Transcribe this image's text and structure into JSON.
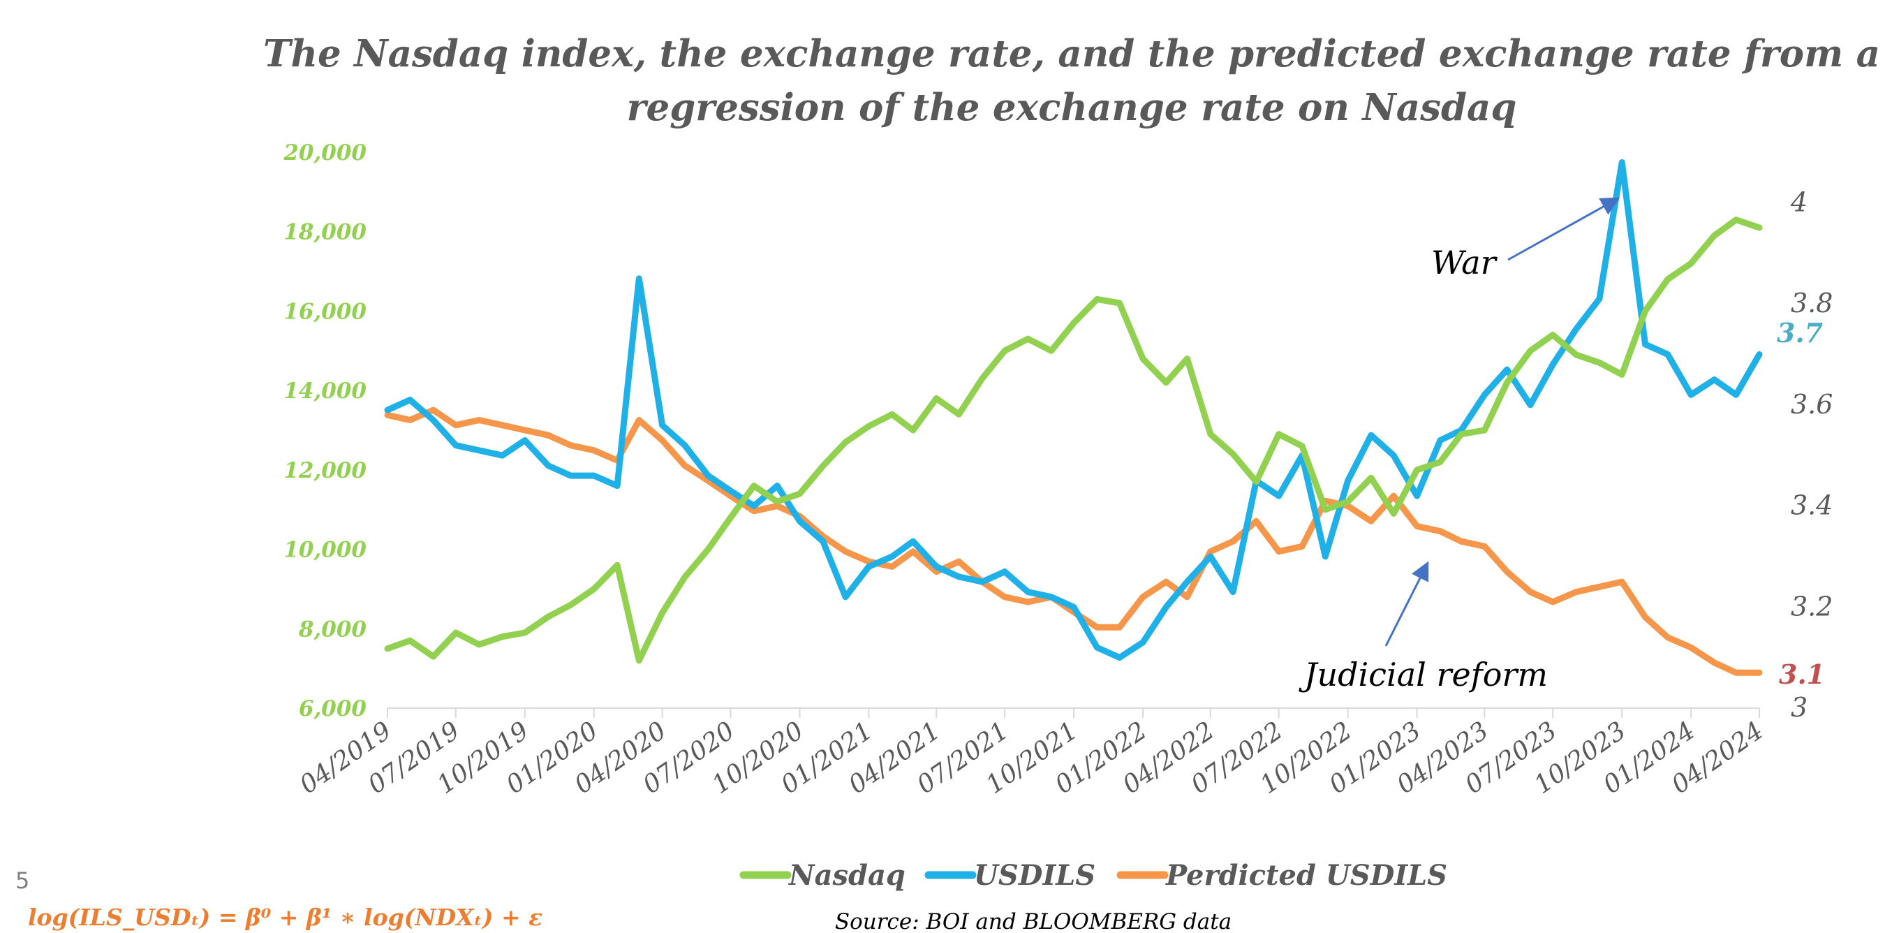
{
  "page_number": "5",
  "formula": "log(ILS_USDₜ) = β⁰ + β¹ ∗ log(NDXₜ) + ε",
  "source": "Source: BOI and BLOOMBERG data",
  "chart_data": {
    "type": "line",
    "title_line1": "The Nasdaq index, the exchange rate, and the predicted exchange rate from a",
    "title_line2": "regression of the exchange rate on Nasdaq",
    "xlabel": "",
    "x_ticks": [
      "04/2019",
      "07/2019",
      "10/2019",
      "01/2020",
      "04/2020",
      "07/2020",
      "10/2020",
      "01/2021",
      "04/2021",
      "07/2021",
      "10/2021",
      "01/2022",
      "04/2022",
      "07/2022",
      "10/2022",
      "01/2023",
      "04/2023",
      "07/2023",
      "10/2023",
      "01/2024",
      "04/2024"
    ],
    "y_left": {
      "ylim": [
        6000,
        20000
      ],
      "ticks": [
        "6,000",
        "8,000",
        "10,000",
        "12,000",
        "14,000",
        "16,000",
        "18,000",
        "20,000"
      ],
      "color": "#92d050"
    },
    "y_right": {
      "ylim": [
        3.0,
        4.1
      ],
      "ticks": [
        "3",
        "3.2",
        "3.4",
        "3.6",
        "3.8",
        "4"
      ],
      "color": "#595959"
    },
    "grid": false,
    "legend_position": "bottom",
    "series": [
      {
        "name": "Nasdaq",
        "axis": "left",
        "color": "#92d050",
        "points": [
          [
            "2019-04",
            7500
          ],
          [
            "2019-05",
            7700
          ],
          [
            "2019-06",
            7300
          ],
          [
            "2019-07",
            7900
          ],
          [
            "2019-08",
            7600
          ],
          [
            "2019-09",
            7800
          ],
          [
            "2019-10",
            7900
          ],
          [
            "2019-11",
            8300
          ],
          [
            "2019-12",
            8600
          ],
          [
            "2020-01",
            9000
          ],
          [
            "2020-02",
            9600
          ],
          [
            "2020-03",
            7200
          ],
          [
            "2020-04",
            8400
          ],
          [
            "2020-05",
            9300
          ],
          [
            "2020-06",
            10000
          ],
          [
            "2020-07",
            10800
          ],
          [
            "2020-08",
            11600
          ],
          [
            "2020-09",
            11200
          ],
          [
            "2020-10",
            11400
          ],
          [
            "2020-11",
            12100
          ],
          [
            "2020-12",
            12700
          ],
          [
            "2021-01",
            13100
          ],
          [
            "2021-02",
            13400
          ],
          [
            "2021-03",
            13000
          ],
          [
            "2021-04",
            13800
          ],
          [
            "2021-05",
            13400
          ],
          [
            "2021-06",
            14300
          ],
          [
            "2021-07",
            15000
          ],
          [
            "2021-08",
            15300
          ],
          [
            "2021-09",
            15000
          ],
          [
            "2021-10",
            15700
          ],
          [
            "2021-11",
            16300
          ],
          [
            "2021-12",
            16200
          ],
          [
            "2022-01",
            14800
          ],
          [
            "2022-02",
            14200
          ],
          [
            "2022-03",
            14800
          ],
          [
            "2022-04",
            12900
          ],
          [
            "2022-05",
            12400
          ],
          [
            "2022-06",
            11700
          ],
          [
            "2022-07",
            12900
          ],
          [
            "2022-08",
            12600
          ],
          [
            "2022-09",
            11000
          ],
          [
            "2022-10",
            11200
          ],
          [
            "2022-11",
            11800
          ],
          [
            "2022-12",
            10900
          ],
          [
            "2023-01",
            12000
          ],
          [
            "2023-02",
            12200
          ],
          [
            "2023-03",
            12900
          ],
          [
            "2023-04",
            13000
          ],
          [
            "2023-05",
            14200
          ],
          [
            "2023-06",
            15000
          ],
          [
            "2023-07",
            15400
          ],
          [
            "2023-08",
            14900
          ],
          [
            "2023-09",
            14700
          ],
          [
            "2023-10",
            14400
          ],
          [
            "2023-11",
            16000
          ],
          [
            "2023-12",
            16800
          ],
          [
            "2024-01",
            17200
          ],
          [
            "2024-02",
            17900
          ],
          [
            "2024-03",
            18300
          ],
          [
            "2024-04",
            18100
          ]
        ]
      },
      {
        "name": "USDILS",
        "axis": "right",
        "color": "#1fb0e8",
        "points": [
          [
            "2019-04",
            3.59
          ],
          [
            "2019-05",
            3.61
          ],
          [
            "2019-06",
            3.57
          ],
          [
            "2019-07",
            3.52
          ],
          [
            "2019-08",
            3.51
          ],
          [
            "2019-09",
            3.5
          ],
          [
            "2019-10",
            3.53
          ],
          [
            "2019-11",
            3.48
          ],
          [
            "2019-12",
            3.46
          ],
          [
            "2020-01",
            3.46
          ],
          [
            "2020-02",
            3.44
          ],
          [
            "2020-03",
            3.85
          ],
          [
            "2020-04",
            3.56
          ],
          [
            "2020-05",
            3.52
          ],
          [
            "2020-06",
            3.46
          ],
          [
            "2020-07",
            3.43
          ],
          [
            "2020-08",
            3.4
          ],
          [
            "2020-09",
            3.44
          ],
          [
            "2020-10",
            3.37
          ],
          [
            "2020-11",
            3.33
          ],
          [
            "2020-12",
            3.22
          ],
          [
            "2021-01",
            3.28
          ],
          [
            "2021-02",
            3.3
          ],
          [
            "2021-03",
            3.33
          ],
          [
            "2021-04",
            3.28
          ],
          [
            "2021-05",
            3.26
          ],
          [
            "2021-06",
            3.25
          ],
          [
            "2021-07",
            3.27
          ],
          [
            "2021-08",
            3.23
          ],
          [
            "2021-09",
            3.22
          ],
          [
            "2021-10",
            3.2
          ],
          [
            "2021-11",
            3.12
          ],
          [
            "2021-12",
            3.1
          ],
          [
            "2022-01",
            3.13
          ],
          [
            "2022-02",
            3.2
          ],
          [
            "2022-03",
            3.25
          ],
          [
            "2022-04",
            3.3
          ],
          [
            "2022-05",
            3.23
          ],
          [
            "2022-06",
            3.45
          ],
          [
            "2022-07",
            3.42
          ],
          [
            "2022-08",
            3.5
          ],
          [
            "2022-09",
            3.3
          ],
          [
            "2022-10",
            3.45
          ],
          [
            "2022-11",
            3.54
          ],
          [
            "2022-12",
            3.5
          ],
          [
            "2023-01",
            3.42
          ],
          [
            "2023-02",
            3.53
          ],
          [
            "2023-03",
            3.55
          ],
          [
            "2023-04",
            3.62
          ],
          [
            "2023-05",
            3.67
          ],
          [
            "2023-06",
            3.6
          ],
          [
            "2023-07",
            3.68
          ],
          [
            "2023-08",
            3.75
          ],
          [
            "2023-09",
            3.81
          ],
          [
            "2023-10",
            4.08
          ],
          [
            "2023-11",
            3.72
          ],
          [
            "2023-12",
            3.7
          ],
          [
            "2024-01",
            3.62
          ],
          [
            "2024-02",
            3.65
          ],
          [
            "2024-03",
            3.62
          ],
          [
            "2024-04",
            3.7
          ]
        ]
      },
      {
        "name": "Perdicted USDILS",
        "axis": "right",
        "color": "#f5964b",
        "points": [
          [
            "2019-04",
            3.58
          ],
          [
            "2019-05",
            3.57
          ],
          [
            "2019-06",
            3.59
          ],
          [
            "2019-07",
            3.56
          ],
          [
            "2019-08",
            3.57
          ],
          [
            "2019-09",
            3.56
          ],
          [
            "2019-10",
            3.55
          ],
          [
            "2019-11",
            3.54
          ],
          [
            "2019-12",
            3.52
          ],
          [
            "2020-01",
            3.51
          ],
          [
            "2020-02",
            3.49
          ],
          [
            "2020-03",
            3.57
          ],
          [
            "2020-04",
            3.53
          ],
          [
            "2020-05",
            3.48
          ],
          [
            "2020-06",
            3.45
          ],
          [
            "2020-07",
            3.42
          ],
          [
            "2020-08",
            3.39
          ],
          [
            "2020-09",
            3.4
          ],
          [
            "2020-10",
            3.38
          ],
          [
            "2020-11",
            3.34
          ],
          [
            "2020-12",
            3.31
          ],
          [
            "2021-01",
            3.29
          ],
          [
            "2021-02",
            3.28
          ],
          [
            "2021-03",
            3.31
          ],
          [
            "2021-04",
            3.27
          ],
          [
            "2021-05",
            3.29
          ],
          [
            "2021-06",
            3.25
          ],
          [
            "2021-07",
            3.22
          ],
          [
            "2021-08",
            3.21
          ],
          [
            "2021-09",
            3.22
          ],
          [
            "2021-10",
            3.19
          ],
          [
            "2021-11",
            3.16
          ],
          [
            "2021-12",
            3.16
          ],
          [
            "2022-01",
            3.22
          ],
          [
            "2022-02",
            3.25
          ],
          [
            "2022-03",
            3.22
          ],
          [
            "2022-04",
            3.31
          ],
          [
            "2022-05",
            3.33
          ],
          [
            "2022-06",
            3.37
          ],
          [
            "2022-07",
            3.31
          ],
          [
            "2022-08",
            3.32
          ],
          [
            "2022-09",
            3.41
          ],
          [
            "2022-10",
            3.4
          ],
          [
            "2022-11",
            3.37
          ],
          [
            "2022-12",
            3.42
          ],
          [
            "2023-01",
            3.36
          ],
          [
            "2023-02",
            3.35
          ],
          [
            "2023-03",
            3.33
          ],
          [
            "2023-04",
            3.32
          ],
          [
            "2023-05",
            3.27
          ],
          [
            "2023-06",
            3.23
          ],
          [
            "2023-07",
            3.21
          ],
          [
            "2023-08",
            3.23
          ],
          [
            "2023-09",
            3.24
          ],
          [
            "2023-10",
            3.25
          ],
          [
            "2023-11",
            3.18
          ],
          [
            "2023-12",
            3.14
          ],
          [
            "2024-01",
            3.12
          ],
          [
            "2024-02",
            3.09
          ],
          [
            "2024-03",
            3.07
          ],
          [
            "2024-04",
            3.07
          ]
        ]
      }
    ],
    "annotations": [
      {
        "text": "War",
        "points_to": [
          "2023-10",
          4.08
        ]
      },
      {
        "text": "Judicial reform",
        "points_to": [
          "2023-03",
          3.28
        ]
      }
    ],
    "end_labels": [
      {
        "text": "3.7",
        "color": "#4bacc6"
      },
      {
        "text": "3.1",
        "color": "#c0504d"
      }
    ]
  }
}
